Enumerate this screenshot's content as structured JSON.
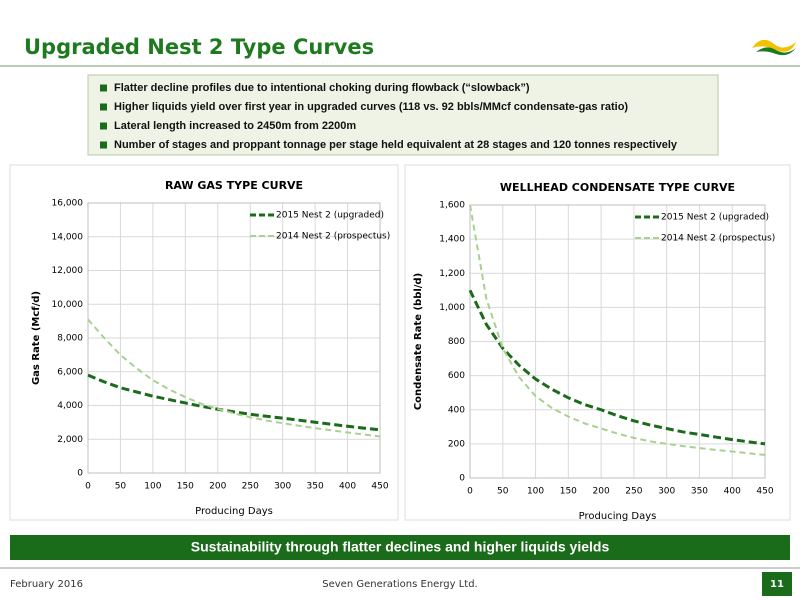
{
  "header": {
    "title": "Upgraded Nest 2 Type Curves"
  },
  "bullets": [
    "Flatter decline profiles due to intentional choking during flowback (“slowback”)",
    "Higher liquids yield over first year in upgraded curves (118 vs. 92 bbls/MMcf condensate-gas ratio)",
    "Lateral length increased to 2450m from 2200m",
    "Number of stages and proppant tonnage per stage held equivalent at 28 stages and 120 tonnes respectively"
  ],
  "banner": "Sustainability through flatter declines and higher liquids yields",
  "footer": {
    "date": "February 2016",
    "company": "Seven Generations Energy Ltd.",
    "page": "11"
  },
  "chart_data": [
    {
      "type": "line",
      "title": "RAW GAS TYPE CURVE",
      "x_label": "Producing Days",
      "y_label": "Gas Rate (Mcf/d)",
      "x": [
        0,
        25,
        50,
        75,
        100,
        125,
        150,
        175,
        200,
        225,
        250,
        275,
        300,
        325,
        350,
        375,
        400,
        425,
        450
      ],
      "series": [
        {
          "name": "2015 Nest 2 (upgraded)",
          "color": "#1a6b1a",
          "values": [
            5800,
            5400,
            5050,
            4800,
            4550,
            4350,
            4150,
            3950,
            3780,
            3620,
            3480,
            3360,
            3250,
            3130,
            3010,
            2890,
            2770,
            2660,
            2560
          ]
        },
        {
          "name": "2014 Nest 2 (prospectus)",
          "color": "#a9d18e",
          "values": [
            9100,
            8000,
            7000,
            6200,
            5500,
            4950,
            4500,
            4100,
            3800,
            3530,
            3300,
            3110,
            2950,
            2800,
            2660,
            2530,
            2400,
            2280,
            2160
          ]
        }
      ],
      "xlim": [
        0,
        450
      ],
      "xticks": [
        0,
        50,
        100,
        150,
        200,
        250,
        300,
        350,
        400,
        450
      ],
      "ylim": [
        0,
        16000
      ],
      "yticks": [
        0,
        {
          "value": 2000,
          "label": "2,000"
        },
        {
          "value": 4000,
          "label": "4,000"
        },
        {
          "value": 6000,
          "label": "6,000"
        },
        {
          "value": 8000,
          "label": "8,000"
        },
        {
          "value": 10000,
          "label": "10,000"
        },
        {
          "value": 12000,
          "label": "12,000"
        },
        {
          "value": 14000,
          "label": "14,000"
        },
        {
          "value": 16000,
          "label": "16,000"
        }
      ],
      "grid": true,
      "legend": "upper right"
    },
    {
      "type": "line",
      "title": "WELLHEAD CONDENSATE TYPE CURVE",
      "x_label": "Producing Days",
      "y_label": "Condensate Rate (bbl/d)",
      "x": [
        0,
        25,
        50,
        75,
        100,
        125,
        150,
        175,
        200,
        225,
        250,
        275,
        300,
        325,
        350,
        375,
        400,
        425,
        450
      ],
      "series": [
        {
          "name": "2015 Nest 2 (upgraded)",
          "color": "#1a6b1a",
          "values": [
            1100,
            900,
            760,
            660,
            580,
            520,
            470,
            430,
            400,
            365,
            335,
            310,
            290,
            270,
            255,
            240,
            225,
            212,
            200
          ]
        },
        {
          "name": "2014 Nest 2 (prospectus)",
          "color": "#a9d18e",
          "values": [
            1600,
            1050,
            760,
            590,
            480,
            410,
            360,
            320,
            290,
            260,
            235,
            215,
            200,
            187,
            175,
            165,
            155,
            145,
            135
          ]
        }
      ],
      "xlim": [
        0,
        450
      ],
      "xticks": [
        0,
        50,
        100,
        150,
        200,
        250,
        300,
        350,
        400,
        450
      ],
      "ylim": [
        0,
        1600
      ],
      "yticks": [
        0,
        200,
        400,
        600,
        800,
        {
          "value": 1000,
          "label": "1,000"
        },
        {
          "value": 1200,
          "label": "1,200"
        },
        {
          "value": 1400,
          "label": "1,400"
        },
        {
          "value": 1600,
          "label": "1,600"
        }
      ],
      "grid": true,
      "legend": "upper right"
    }
  ]
}
